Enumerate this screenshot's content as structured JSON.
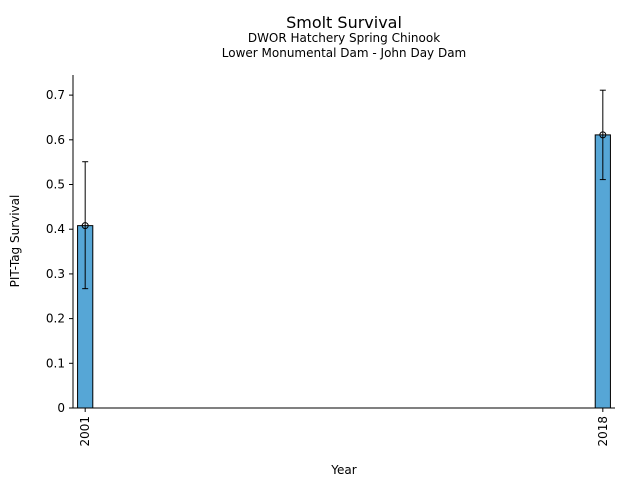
{
  "chart_data": {
    "type": "bar",
    "title": "Smolt Survival",
    "subtitle_lines": [
      "DWOR Hatchery Spring Chinook",
      "Lower Monumental Dam - John Day Dam"
    ],
    "xlabel": "Year",
    "ylabel": "PIT-Tag Survival",
    "x": [
      2001,
      2018
    ],
    "x_tick_labels": [
      "2001",
      "2018"
    ],
    "values": [
      0.408,
      0.611
    ],
    "error_low": [
      0.267,
      0.511
    ],
    "error_high": [
      0.551,
      0.711
    ],
    "ylim": [
      0,
      0.745
    ],
    "xlim": [
      2000.6,
      2018.4
    ],
    "y_ticks": [
      0,
      0.1,
      0.2,
      0.3,
      0.4,
      0.5,
      0.6,
      0.7
    ],
    "y_tick_labels": [
      "0",
      "0.1",
      "0.2",
      "0.3",
      "0.4",
      "0.5",
      "0.6",
      "0.7"
    ],
    "bar_width_years": 0.5,
    "grid": false,
    "legend": "none",
    "colors": {
      "bar_fill": "#56a6d6",
      "bar_edge": "#000000",
      "axis": "#000000"
    }
  }
}
